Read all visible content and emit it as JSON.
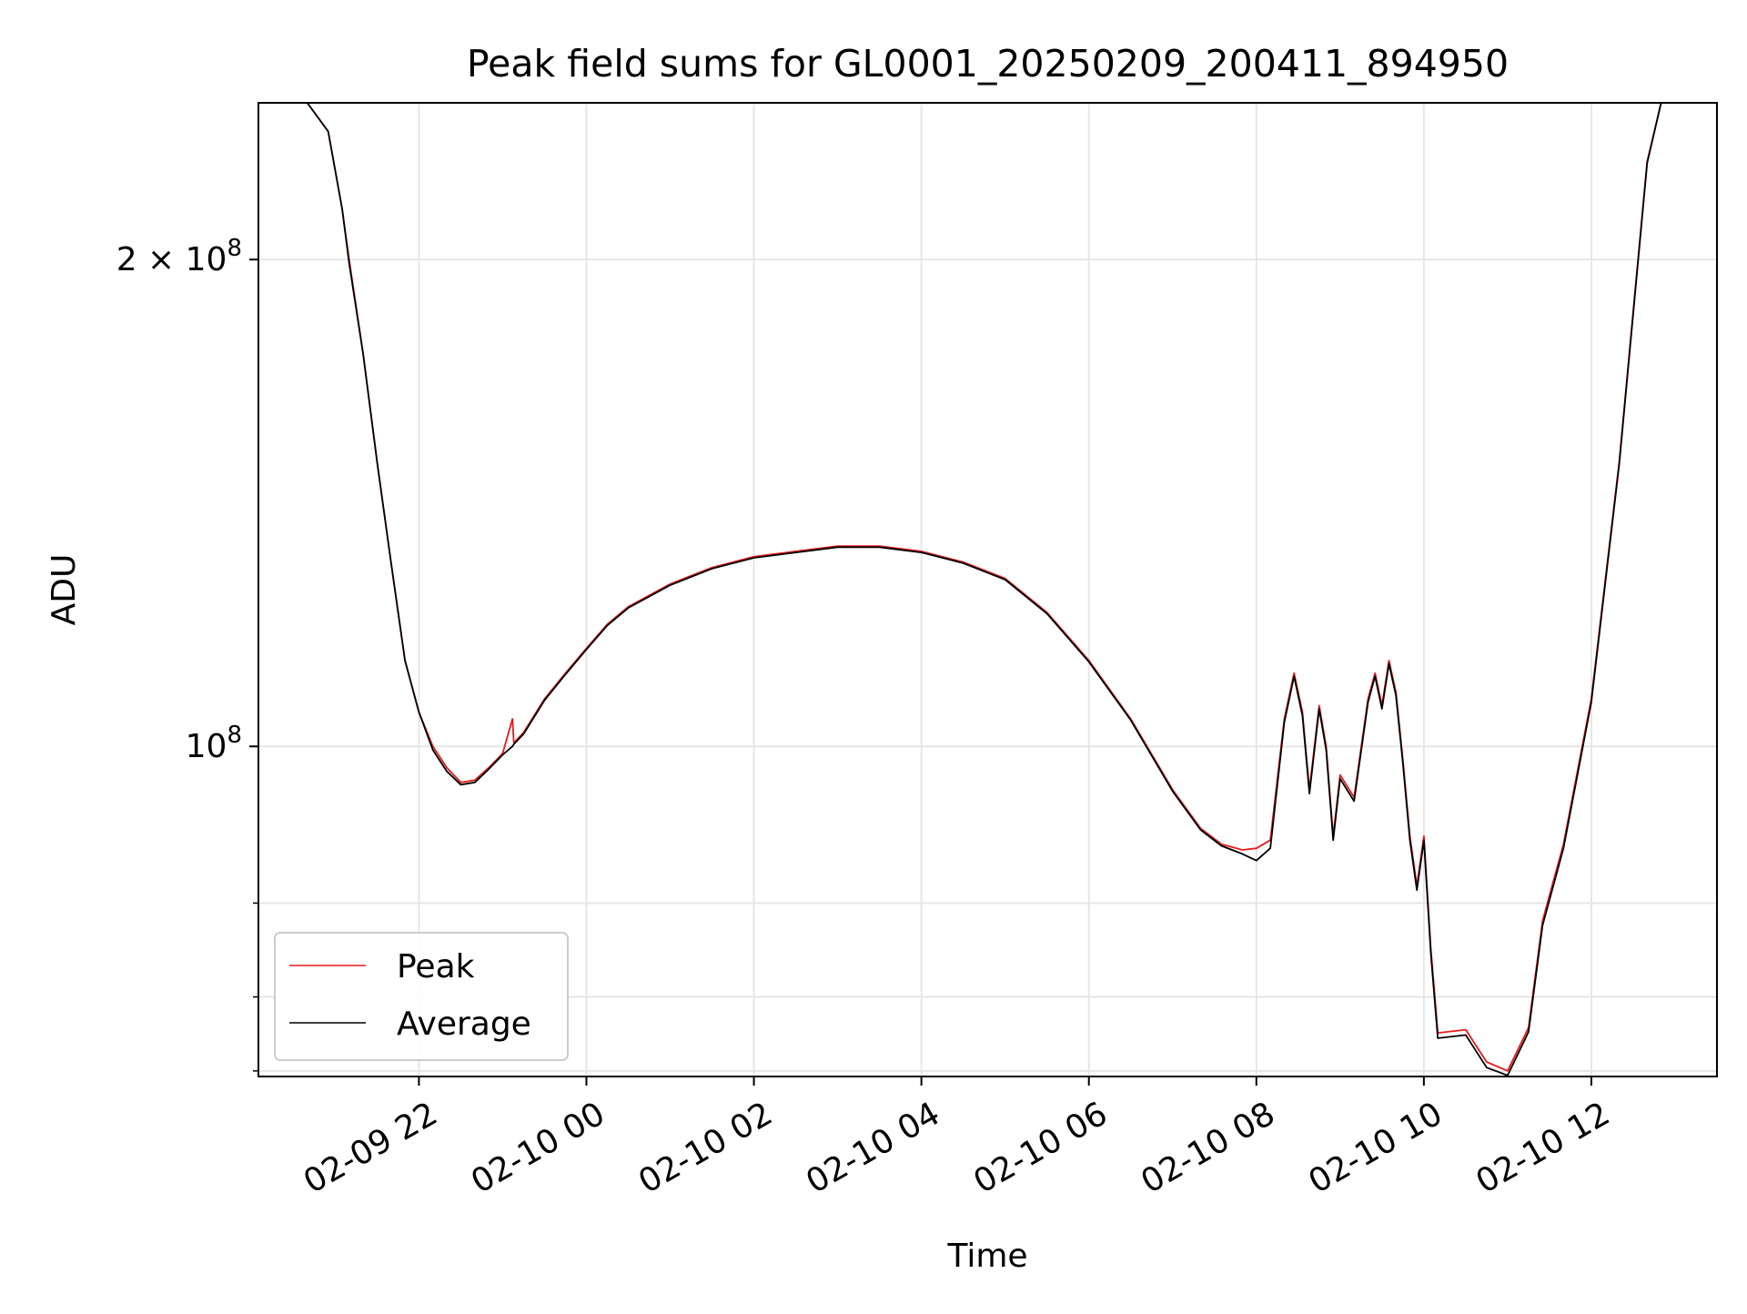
{
  "colors": {
    "peak": "#e8191a",
    "average": "#000000",
    "grid": "#e6e6e6",
    "axes": "#000000",
    "legend_border": "#cccccc"
  },
  "chart_data": {
    "type": "line",
    "title": "Peak field sums for GL0001_20250209_200411_894950",
    "xlabel": "Time",
    "ylabel": "ADU",
    "yscale": "log",
    "grid": true,
    "legend_position": "lower-left",
    "xlim": [
      "2025-02-09 20:05",
      "2025-02-10 13:30"
    ],
    "ylim": [
      62500000,
      250000000
    ],
    "x_ticks": [
      {
        "value": "2025-02-09 22:00",
        "label": "02-09 22"
      },
      {
        "value": "2025-02-10 00:00",
        "label": "02-10 00"
      },
      {
        "value": "2025-02-10 02:00",
        "label": "02-10 02"
      },
      {
        "value": "2025-02-10 04:00",
        "label": "02-10 04"
      },
      {
        "value": "2025-02-10 06:00",
        "label": "02-10 06"
      },
      {
        "value": "2025-02-10 08:00",
        "label": "02-10 08"
      },
      {
        "value": "2025-02-10 10:00",
        "label": "02-10 10"
      },
      {
        "value": "2025-02-10 12:00",
        "label": "02-10 12"
      }
    ],
    "y_major_ticks": [
      {
        "value": 100000000,
        "base": "10",
        "exp": "8",
        "mant": ""
      },
      {
        "value": 200000000,
        "base": "10",
        "exp": "8",
        "mant": "2 × "
      }
    ],
    "y_minor_ticks": [
      63000000,
      70000000,
      80000000
    ],
    "series": [
      {
        "name": "Peak",
        "color": "#e8191a",
        "points": [
          [
            "2025-02-09 20:40",
            250000000
          ],
          [
            "2025-02-09 20:55",
            240000000
          ],
          [
            "2025-02-09 21:05",
            215000000
          ],
          [
            "2025-02-09 21:10",
            200000000
          ],
          [
            "2025-02-09 21:20",
            175000000
          ],
          [
            "2025-02-09 21:30",
            150000000
          ],
          [
            "2025-02-09 21:40",
            130000000
          ],
          [
            "2025-02-09 21:50",
            113000000
          ],
          [
            "2025-02-09 22:00",
            105000000
          ],
          [
            "2025-02-09 22:10",
            100000000
          ],
          [
            "2025-02-09 22:20",
            97000000
          ],
          [
            "2025-02-09 22:30",
            95000000
          ],
          [
            "2025-02-09 22:40",
            95300000
          ],
          [
            "2025-02-09 22:50",
            97000000
          ],
          [
            "2025-02-09 23:00",
            99000000
          ],
          [
            "2025-02-09 23:07",
            104000000
          ],
          [
            "2025-02-09 23:08",
            100500000
          ],
          [
            "2025-02-09 23:15",
            102000000
          ],
          [
            "2025-02-09 23:30",
            107000000
          ],
          [
            "2025-02-09 23:45",
            111000000
          ],
          [
            "2025-02-10 00:00",
            115000000
          ],
          [
            "2025-02-10 00:15",
            119000000
          ],
          [
            "2025-02-10 00:30",
            122000000
          ],
          [
            "2025-02-10 01:00",
            126000000
          ],
          [
            "2025-02-10 01:30",
            129000000
          ],
          [
            "2025-02-10 02:00",
            131000000
          ],
          [
            "2025-02-10 02:30",
            132000000
          ],
          [
            "2025-02-10 03:00",
            133000000
          ],
          [
            "2025-02-10 03:30",
            133000000
          ],
          [
            "2025-02-10 04:00",
            132000000
          ],
          [
            "2025-02-10 04:30",
            130000000
          ],
          [
            "2025-02-10 05:00",
            127000000
          ],
          [
            "2025-02-10 05:30",
            121000000
          ],
          [
            "2025-02-10 06:00",
            113000000
          ],
          [
            "2025-02-10 06:30",
            104000000
          ],
          [
            "2025-02-10 07:00",
            94000000
          ],
          [
            "2025-02-10 07:20",
            89000000
          ],
          [
            "2025-02-10 07:35",
            87000000
          ],
          [
            "2025-02-10 07:50",
            86300000
          ],
          [
            "2025-02-10 08:00",
            86500000
          ],
          [
            "2025-02-10 08:10",
            87500000
          ],
          [
            "2025-02-10 08:20",
            104000000
          ],
          [
            "2025-02-10 08:27",
            111000000
          ],
          [
            "2025-02-10 08:33",
            105000000
          ],
          [
            "2025-02-10 08:38",
            94000000
          ],
          [
            "2025-02-10 08:45",
            106000000
          ],
          [
            "2025-02-10 08:50",
            100000000
          ],
          [
            "2025-02-10 08:55",
            88000000
          ],
          [
            "2025-02-10 09:00",
            96000000
          ],
          [
            "2025-02-10 09:10",
            93000000
          ],
          [
            "2025-02-10 09:20",
            107000000
          ],
          [
            "2025-02-10 09:25",
            111000000
          ],
          [
            "2025-02-10 09:30",
            106000000
          ],
          [
            "2025-02-10 09:35",
            113000000
          ],
          [
            "2025-02-10 09:40",
            108000000
          ],
          [
            "2025-02-10 09:45",
            98000000
          ],
          [
            "2025-02-10 09:50",
            88000000
          ],
          [
            "2025-02-10 09:55",
            82000000
          ],
          [
            "2025-02-10 10:00",
            88000000
          ],
          [
            "2025-02-10 10:05",
            75000000
          ],
          [
            "2025-02-10 10:10",
            66500000
          ],
          [
            "2025-02-10 10:30",
            66800000
          ],
          [
            "2025-02-10 10:45",
            63800000
          ],
          [
            "2025-02-10 11:00",
            63000000
          ],
          [
            "2025-02-10 11:15",
            67000000
          ],
          [
            "2025-02-10 11:25",
            78000000
          ],
          [
            "2025-02-10 11:40",
            87000000
          ],
          [
            "2025-02-10 12:00",
            107000000
          ],
          [
            "2025-02-10 12:20",
            150000000
          ],
          [
            "2025-02-10 12:40",
            230000000
          ],
          [
            "2025-02-10 12:50",
            250000000
          ]
        ]
      },
      {
        "name": "Average",
        "color": "#000000",
        "points": [
          [
            "2025-02-09 20:40",
            250000000
          ],
          [
            "2025-02-09 20:55",
            240000000
          ],
          [
            "2025-02-09 21:05",
            215000000
          ],
          [
            "2025-02-09 21:10",
            199000000
          ],
          [
            "2025-02-09 21:20",
            175000000
          ],
          [
            "2025-02-09 21:30",
            150000000
          ],
          [
            "2025-02-09 21:40",
            130000000
          ],
          [
            "2025-02-09 21:50",
            113000000
          ],
          [
            "2025-02-09 22:00",
            105000000
          ],
          [
            "2025-02-09 22:10",
            99500000
          ],
          [
            "2025-02-09 22:20",
            96500000
          ],
          [
            "2025-02-09 22:30",
            94700000
          ],
          [
            "2025-02-09 22:40",
            95000000
          ],
          [
            "2025-02-09 22:50",
            96800000
          ],
          [
            "2025-02-09 23:00",
            98800000
          ],
          [
            "2025-02-09 23:07",
            100000000
          ],
          [
            "2025-02-09 23:08",
            100300000
          ],
          [
            "2025-02-09 23:15",
            101800000
          ],
          [
            "2025-02-09 23:30",
            106800000
          ],
          [
            "2025-02-09 23:45",
            110800000
          ],
          [
            "2025-02-10 00:00",
            114800000
          ],
          [
            "2025-02-10 00:15",
            118800000
          ],
          [
            "2025-02-10 00:30",
            121800000
          ],
          [
            "2025-02-10 01:00",
            125800000
          ],
          [
            "2025-02-10 01:30",
            128800000
          ],
          [
            "2025-02-10 02:00",
            130800000
          ],
          [
            "2025-02-10 02:30",
            131800000
          ],
          [
            "2025-02-10 03:00",
            132800000
          ],
          [
            "2025-02-10 03:30",
            132800000
          ],
          [
            "2025-02-10 04:00",
            131800000
          ],
          [
            "2025-02-10 04:30",
            129800000
          ],
          [
            "2025-02-10 05:00",
            126800000
          ],
          [
            "2025-02-10 05:30",
            120800000
          ],
          [
            "2025-02-10 06:00",
            112800000
          ],
          [
            "2025-02-10 06:30",
            103800000
          ],
          [
            "2025-02-10 07:00",
            93800000
          ],
          [
            "2025-02-10 07:20",
            88800000
          ],
          [
            "2025-02-10 07:35",
            86800000
          ],
          [
            "2025-02-10 07:50",
            85800000
          ],
          [
            "2025-02-10 08:00",
            85000000
          ],
          [
            "2025-02-10 08:10",
            86500000
          ],
          [
            "2025-02-10 08:20",
            103500000
          ],
          [
            "2025-02-10 08:27",
            110500000
          ],
          [
            "2025-02-10 08:33",
            104500000
          ],
          [
            "2025-02-10 08:38",
            93500000
          ],
          [
            "2025-02-10 08:45",
            105500000
          ],
          [
            "2025-02-10 08:50",
            99500000
          ],
          [
            "2025-02-10 08:55",
            87500000
          ],
          [
            "2025-02-10 09:00",
            95500000
          ],
          [
            "2025-02-10 09:10",
            92500000
          ],
          [
            "2025-02-10 09:20",
            106500000
          ],
          [
            "2025-02-10 09:25",
            110500000
          ],
          [
            "2025-02-10 09:30",
            105500000
          ],
          [
            "2025-02-10 09:35",
            112500000
          ],
          [
            "2025-02-10 09:40",
            107500000
          ],
          [
            "2025-02-10 09:45",
            97500000
          ],
          [
            "2025-02-10 09:50",
            87500000
          ],
          [
            "2025-02-10 09:55",
            81500000
          ],
          [
            "2025-02-10 10:00",
            87500000
          ],
          [
            "2025-02-10 10:05",
            74500000
          ],
          [
            "2025-02-10 10:10",
            66000000
          ],
          [
            "2025-02-10 10:30",
            66300000
          ],
          [
            "2025-02-10 10:45",
            63300000
          ],
          [
            "2025-02-10 11:00",
            62600000
          ],
          [
            "2025-02-10 11:15",
            66600000
          ],
          [
            "2025-02-10 11:25",
            77500000
          ],
          [
            "2025-02-10 11:40",
            86500000
          ],
          [
            "2025-02-10 12:00",
            106500000
          ],
          [
            "2025-02-10 12:20",
            149500000
          ],
          [
            "2025-02-10 12:40",
            229500000
          ],
          [
            "2025-02-10 12:50",
            250000000
          ]
        ]
      }
    ]
  }
}
